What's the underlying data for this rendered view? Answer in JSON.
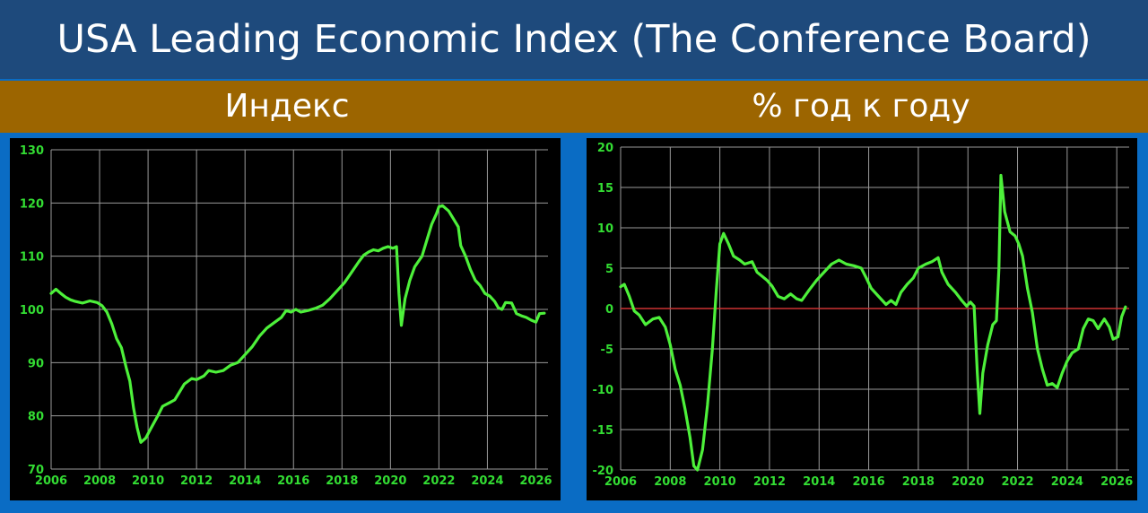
{
  "header": {
    "title": "USA Leading Economic Index (The Conference Board)"
  },
  "subtitles": {
    "left": "Индекс",
    "right": "% год к году"
  },
  "colors": {
    "line": "#4df03a",
    "grid": "#9a9a9a",
    "tick_text": "#33dd33",
    "zero_line": "#cc3333",
    "background": "#000000"
  },
  "chart_data": [
    {
      "type": "line",
      "title": "Индекс",
      "xlim": [
        2006,
        2026.5
      ],
      "ylim": [
        70,
        130
      ],
      "x_ticks": [
        2006,
        2008,
        2010,
        2012,
        2014,
        2016,
        2018,
        2020,
        2022,
        2024,
        2026
      ],
      "y_ticks": [
        70,
        80,
        90,
        100,
        110,
        120,
        130
      ],
      "grid": true,
      "series": [
        {
          "points": [
            [
              2006.0,
              103.0
            ],
            [
              2006.2,
              103.8
            ],
            [
              2006.4,
              103.0
            ],
            [
              2006.6,
              102.3
            ],
            [
              2006.8,
              101.8
            ],
            [
              2007.0,
              101.5
            ],
            [
              2007.3,
              101.2
            ],
            [
              2007.6,
              101.6
            ],
            [
              2007.9,
              101.3
            ],
            [
              2008.1,
              100.7
            ],
            [
              2008.3,
              99.5
            ],
            [
              2008.5,
              97.3
            ],
            [
              2008.7,
              94.5
            ],
            [
              2008.9,
              92.8
            ],
            [
              2009.1,
              89.0
            ],
            [
              2009.25,
              86.5
            ],
            [
              2009.4,
              81.5
            ],
            [
              2009.55,
              77.8
            ],
            [
              2009.7,
              75.0
            ],
            [
              2009.9,
              75.8
            ],
            [
              2010.1,
              77.5
            ],
            [
              2010.4,
              80.0
            ],
            [
              2010.6,
              81.8
            ],
            [
              2010.9,
              82.5
            ],
            [
              2011.1,
              83.0
            ],
            [
              2011.3,
              84.5
            ],
            [
              2011.5,
              86.0
            ],
            [
              2011.8,
              87.0
            ],
            [
              2012.0,
              86.8
            ],
            [
              2012.3,
              87.5
            ],
            [
              2012.5,
              88.5
            ],
            [
              2012.8,
              88.2
            ],
            [
              2013.1,
              88.5
            ],
            [
              2013.4,
              89.5
            ],
            [
              2013.7,
              90.0
            ],
            [
              2014.0,
              91.5
            ],
            [
              2014.3,
              93.0
            ],
            [
              2014.6,
              95.0
            ],
            [
              2014.9,
              96.5
            ],
            [
              2015.2,
              97.5
            ],
            [
              2015.5,
              98.5
            ],
            [
              2015.7,
              99.8
            ],
            [
              2015.9,
              99.5
            ],
            [
              2016.1,
              100.0
            ],
            [
              2016.3,
              99.5
            ],
            [
              2016.6,
              99.8
            ],
            [
              2016.9,
              100.2
            ],
            [
              2017.2,
              100.8
            ],
            [
              2017.5,
              102.0
            ],
            [
              2017.8,
              103.5
            ],
            [
              2018.1,
              105.0
            ],
            [
              2018.4,
              107.0
            ],
            [
              2018.7,
              109.0
            ],
            [
              2018.9,
              110.2
            ],
            [
              2019.1,
              110.8
            ],
            [
              2019.3,
              111.2
            ],
            [
              2019.5,
              111.0
            ],
            [
              2019.7,
              111.5
            ],
            [
              2019.9,
              111.8
            ],
            [
              2020.1,
              111.5
            ],
            [
              2020.25,
              111.8
            ],
            [
              2020.35,
              103.0
            ],
            [
              2020.45,
              97.0
            ],
            [
              2020.6,
              102.0
            ],
            [
              2020.8,
              105.5
            ],
            [
              2021.0,
              108.0
            ],
            [
              2021.3,
              110.0
            ],
            [
              2021.5,
              113.0
            ],
            [
              2021.7,
              116.0
            ],
            [
              2021.9,
              118.0
            ],
            [
              2022.0,
              119.3
            ],
            [
              2022.15,
              119.5
            ],
            [
              2022.4,
              118.5
            ],
            [
              2022.6,
              117.0
            ],
            [
              2022.8,
              115.5
            ],
            [
              2022.9,
              112.0
            ],
            [
              2023.1,
              110.0
            ],
            [
              2023.3,
              107.5
            ],
            [
              2023.5,
              105.5
            ],
            [
              2023.7,
              104.5
            ],
            [
              2023.9,
              103.0
            ],
            [
              2024.1,
              102.5
            ],
            [
              2024.3,
              101.5
            ],
            [
              2024.45,
              100.3
            ],
            [
              2024.6,
              100.0
            ],
            [
              2024.75,
              101.3
            ],
            [
              2025.0,
              101.2
            ],
            [
              2025.2,
              99.2
            ],
            [
              2025.4,
              98.8
            ],
            [
              2025.6,
              98.5
            ],
            [
              2025.8,
              98.0
            ],
            [
              2026.0,
              97.6
            ],
            [
              2026.15,
              99.2
            ],
            [
              2026.35,
              99.3
            ]
          ]
        }
      ]
    },
    {
      "type": "line",
      "title": "% год к году",
      "xlim": [
        2006,
        2026.5
      ],
      "ylim": [
        -20,
        20
      ],
      "x_ticks": [
        2006,
        2008,
        2010,
        2012,
        2014,
        2016,
        2018,
        2020,
        2022,
        2024,
        2026
      ],
      "y_ticks": [
        -20,
        -15,
        -10,
        -5,
        0,
        5,
        10,
        15,
        20
      ],
      "grid": true,
      "zero_line": true,
      "series": [
        {
          "points": [
            [
              2006.0,
              2.7
            ],
            [
              2006.15,
              3.0
            ],
            [
              2006.35,
              1.5
            ],
            [
              2006.55,
              -0.3
            ],
            [
              2006.75,
              -0.8
            ],
            [
              2007.0,
              -2.0
            ],
            [
              2007.3,
              -1.3
            ],
            [
              2007.55,
              -1.1
            ],
            [
              2007.8,
              -2.3
            ],
            [
              2008.0,
              -4.5
            ],
            [
              2008.2,
              -7.5
            ],
            [
              2008.4,
              -9.5
            ],
            [
              2008.6,
              -12.5
            ],
            [
              2008.8,
              -16.0
            ],
            [
              2008.95,
              -19.5
            ],
            [
              2009.1,
              -20.0
            ],
            [
              2009.3,
              -17.5
            ],
            [
              2009.5,
              -12.0
            ],
            [
              2009.7,
              -5.0
            ],
            [
              2009.85,
              2.0
            ],
            [
              2010.0,
              8.0
            ],
            [
              2010.15,
              9.3
            ],
            [
              2010.35,
              8.0
            ],
            [
              2010.55,
              6.5
            ],
            [
              2010.8,
              6.0
            ],
            [
              2011.0,
              5.5
            ],
            [
              2011.3,
              5.8
            ],
            [
              2011.5,
              4.5
            ],
            [
              2011.7,
              4.0
            ],
            [
              2011.9,
              3.5
            ],
            [
              2012.1,
              2.8
            ],
            [
              2012.35,
              1.5
            ],
            [
              2012.6,
              1.2
            ],
            [
              2012.85,
              1.8
            ],
            [
              2013.1,
              1.2
            ],
            [
              2013.3,
              1.0
            ],
            [
              2013.6,
              2.3
            ],
            [
              2013.9,
              3.5
            ],
            [
              2014.2,
              4.5
            ],
            [
              2014.5,
              5.5
            ],
            [
              2014.8,
              6.0
            ],
            [
              2015.1,
              5.5
            ],
            [
              2015.4,
              5.3
            ],
            [
              2015.7,
              5.0
            ],
            [
              2015.9,
              3.8
            ],
            [
              2016.1,
              2.5
            ],
            [
              2016.4,
              1.5
            ],
            [
              2016.7,
              0.5
            ],
            [
              2016.9,
              1.0
            ],
            [
              2017.1,
              0.5
            ],
            [
              2017.3,
              2.0
            ],
            [
              2017.55,
              3.0
            ],
            [
              2017.8,
              3.8
            ],
            [
              2018.0,
              5.0
            ],
            [
              2018.3,
              5.5
            ],
            [
              2018.55,
              5.8
            ],
            [
              2018.8,
              6.3
            ],
            [
              2018.95,
              4.5
            ],
            [
              2019.2,
              3.0
            ],
            [
              2019.5,
              2.0
            ],
            [
              2019.75,
              1.0
            ],
            [
              2019.95,
              0.3
            ],
            [
              2020.1,
              0.8
            ],
            [
              2020.25,
              0.3
            ],
            [
              2020.38,
              -8.0
            ],
            [
              2020.48,
              -13.0
            ],
            [
              2020.6,
              -8.0
            ],
            [
              2020.8,
              -4.5
            ],
            [
              2021.0,
              -2.0
            ],
            [
              2021.15,
              -1.5
            ],
            [
              2021.25,
              5.0
            ],
            [
              2021.33,
              16.5
            ],
            [
              2021.48,
              12.0
            ],
            [
              2021.7,
              9.5
            ],
            [
              2021.9,
              9.0
            ],
            [
              2022.05,
              8.0
            ],
            [
              2022.2,
              6.5
            ],
            [
              2022.4,
              2.5
            ],
            [
              2022.6,
              -0.5
            ],
            [
              2022.8,
              -5.0
            ],
            [
              2023.0,
              -7.5
            ],
            [
              2023.2,
              -9.5
            ],
            [
              2023.4,
              -9.3
            ],
            [
              2023.6,
              -9.8
            ],
            [
              2023.8,
              -8.0
            ],
            [
              2024.0,
              -6.5
            ],
            [
              2024.2,
              -5.5
            ],
            [
              2024.45,
              -5.0
            ],
            [
              2024.65,
              -2.5
            ],
            [
              2024.85,
              -1.3
            ],
            [
              2025.05,
              -1.5
            ],
            [
              2025.25,
              -2.5
            ],
            [
              2025.5,
              -1.3
            ],
            [
              2025.7,
              -2.3
            ],
            [
              2025.85,
              -3.8
            ],
            [
              2026.05,
              -3.5
            ],
            [
              2026.2,
              -1.0
            ],
            [
              2026.35,
              0.2
            ]
          ]
        }
      ]
    }
  ]
}
